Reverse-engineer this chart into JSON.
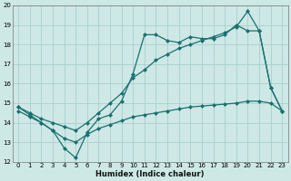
{
  "xlabel": "Humidex (Indice chaleur)",
  "xlim": [
    -0.5,
    23.5
  ],
  "ylim": [
    12,
    20
  ],
  "yticks": [
    12,
    13,
    14,
    15,
    16,
    17,
    18,
    19,
    20
  ],
  "xticks": [
    0,
    1,
    2,
    3,
    4,
    5,
    6,
    7,
    8,
    9,
    10,
    11,
    12,
    13,
    14,
    15,
    16,
    17,
    18,
    19,
    20,
    21,
    22,
    23
  ],
  "bg_color": "#cde8e5",
  "grid_color": "#aacfcc",
  "line_color": "#1a7070",
  "line1_y": [
    14.8,
    14.4,
    14.0,
    13.6,
    12.7,
    12.2,
    13.5,
    14.2,
    14.4,
    15.1,
    16.5,
    18.5,
    18.5,
    18.2,
    18.1,
    18.4,
    18.3,
    18.3,
    18.5,
    19.0,
    18.7,
    18.7,
    15.8,
    14.6
  ],
  "line2_y": [
    14.8,
    14.5,
    14.2,
    14.0,
    13.8,
    13.6,
    14.0,
    14.5,
    15.0,
    15.5,
    16.3,
    16.7,
    17.2,
    17.5,
    17.8,
    18.0,
    18.2,
    18.4,
    18.6,
    18.9,
    19.7,
    18.7,
    15.8,
    14.6
  ],
  "line3_y": [
    14.6,
    14.3,
    14.0,
    13.6,
    13.2,
    13.0,
    13.4,
    13.7,
    13.9,
    14.1,
    14.3,
    14.4,
    14.5,
    14.6,
    14.7,
    14.8,
    14.85,
    14.9,
    14.95,
    15.0,
    15.1,
    15.1,
    15.0,
    14.6
  ]
}
